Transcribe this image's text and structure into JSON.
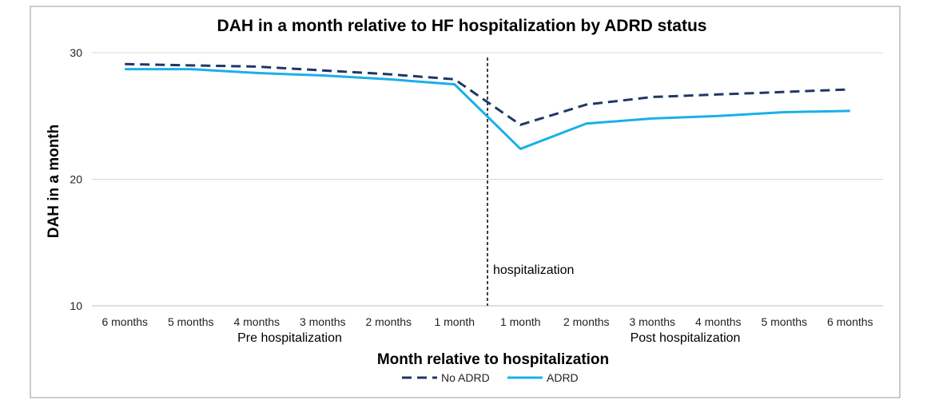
{
  "chart_data": {
    "type": "line",
    "title": "DAH in a month relative to HF hospitalization by ADRD status",
    "xlabel": "Month relative to hospitalization",
    "ylabel": "DAH in a month",
    "categories": [
      "6 months",
      "5 months",
      "4 months",
      "3 months",
      "2 months",
      "1 month",
      "1 month",
      "2 months",
      "3 months",
      "4 months",
      "5 months",
      "6 months"
    ],
    "groups": [
      {
        "label": "Pre hospitalization",
        "start": 0,
        "end": 5
      },
      {
        "label": "Post hospitalization",
        "start": 6,
        "end": 11
      }
    ],
    "ylim": [
      10,
      30
    ],
    "yticks": [
      10,
      20,
      30
    ],
    "grid": true,
    "annotation": {
      "label": "hospitalization",
      "between": [
        5,
        6
      ]
    },
    "legend_position": "bottom",
    "series": [
      {
        "name": "No ADRD",
        "color": "#1f3864",
        "dash": "dashed",
        "values": [
          29.1,
          29.0,
          28.9,
          28.6,
          28.3,
          27.9,
          24.3,
          25.9,
          26.5,
          26.7,
          26.9,
          27.1
        ]
      },
      {
        "name": "ADRD",
        "color": "#1ab0e8",
        "dash": "solid",
        "values": [
          28.7,
          28.7,
          28.4,
          28.2,
          27.9,
          27.5,
          22.4,
          24.4,
          24.8,
          25.0,
          25.3,
          25.4
        ]
      }
    ]
  }
}
